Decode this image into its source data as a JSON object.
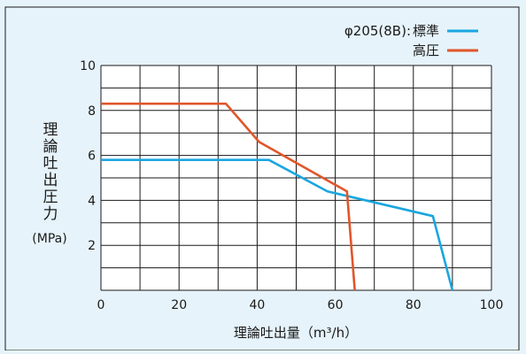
{
  "legend": {
    "prefix": "φ205(8B):",
    "items": [
      "標準",
      "高圧"
    ]
  },
  "colors": {
    "background": "#e6f3fa",
    "plot_bg": "#ffffff",
    "grid": "#1a1a1a",
    "standard": "#1aa6e0",
    "high_pressure": "#e0562a"
  },
  "chart_data": {
    "type": "line",
    "xlabel": "理論吐出量（m³/h）",
    "ylabel_chars": [
      "理",
      "論",
      "吐",
      "出",
      "圧",
      "力"
    ],
    "ylabel_unit": "(MPa)",
    "xlim": [
      0,
      100
    ],
    "ylim": [
      0,
      10
    ],
    "x_ticks": [
      0,
      20,
      40,
      60,
      80,
      100
    ],
    "y_ticks": [
      2,
      4,
      6,
      8,
      10
    ],
    "grid": true,
    "legend_position": "top-right",
    "series": [
      {
        "name": "標準",
        "x": [
          0,
          43,
          58,
          85,
          90
        ],
        "y": [
          5.8,
          5.8,
          4.4,
          3.3,
          0
        ]
      },
      {
        "name": "高圧",
        "x": [
          0,
          32,
          40.5,
          63,
          65
        ],
        "y": [
          8.3,
          8.3,
          6.6,
          4.4,
          0
        ]
      }
    ]
  }
}
